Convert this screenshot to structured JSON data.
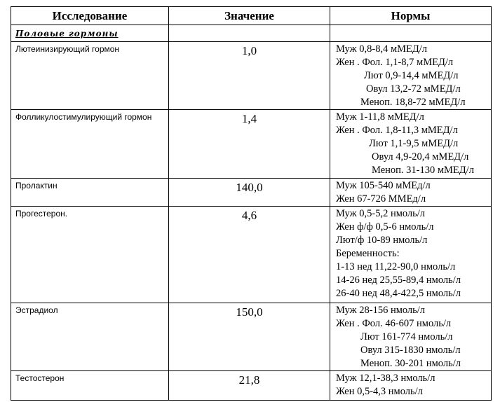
{
  "header": {
    "col1": "Исследование",
    "col2": "Значение",
    "col3": "Нормы"
  },
  "section": "Половые гормоны",
  "rows": [
    {
      "name": "Лютеинизирующий гормон",
      "value": "1,0",
      "norms": [
        "Муж 0,8-8,4 мМЕД/л",
        "Жен . Фол. 1,1-8,7 мМЕД/л",
        "Лют  0,9-14,4 мМЕД/л",
        "Овул 13,2-72 мМЕД/л",
        "Меноп. 18,8-72 мМЕД/л"
      ]
    },
    {
      "name": "Фолликулостимулирующий гормон",
      "value": "1,4",
      "norms": [
        "Муж  1-11,8 мМЕД/л",
        "Жен . Фол. 1,8-11,3 мМЕД/л",
        "Лют 1,1-9,5 мМЕД/л",
        "Овул 4,9-20,4 мМЕД/л",
        "Меноп. 31-130 мМЕД/л"
      ]
    },
    {
      "name": "Пролактин",
      "value": "140,0",
      "norms": [
        "Муж 105-540 мМЕд/л",
        "Жен 67-726 ММЕд/л"
      ]
    },
    {
      "name": "Прогестерон.",
      "value": "4,6",
      "norms": [
        "Муж 0,5-5,2 нмоль/л",
        "Жен ф/ф 0,5-6 нмоль/л",
        "Лют/ф   10-89 нмоль/л",
        "Беременность:",
        "1-13 нед   11,22-90,0 нмоль/л",
        "14-26 нед 25,55-89,4 нмоль/л",
        "26-40 нед 48,4-422,5 нмоль/л"
      ]
    },
    {
      "name": "Эстрадиол",
      "value": "150,0",
      "norms": [
        "Муж  28-156 нмоль/л",
        "Жен . Фол. 46-607 нмоль/л",
        "Лют 161-774 нмоль/л",
        "Овул 315-1830 нмоль/л",
        "Меноп. 30-201 нмоль/л"
      ]
    },
    {
      "name": "Тестостерон",
      "value": "21,8",
      "norms": [
        "Муж 12,1-38,3 нмоль/л",
        "Жен 0,5-4,3 нмоль/л"
      ]
    }
  ]
}
